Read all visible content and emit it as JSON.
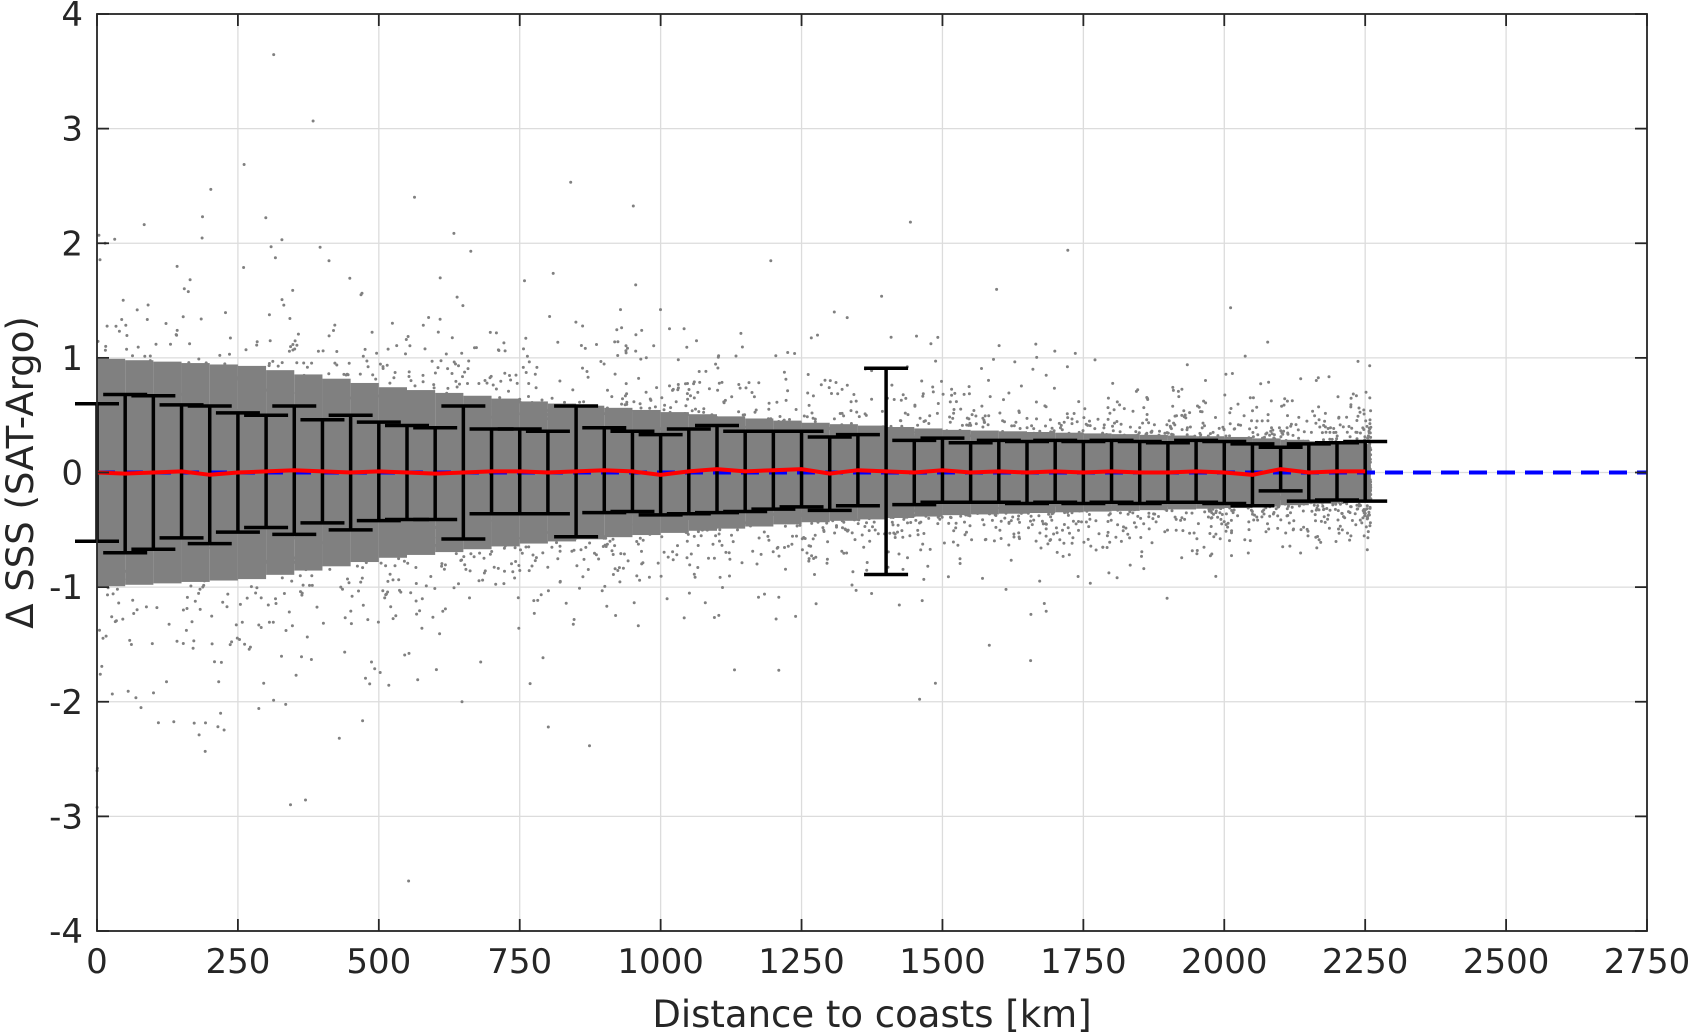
{
  "chart_data": {
    "type": "scatter",
    "title": "",
    "xlabel": "Distance to coasts [km]",
    "ylabel": "Δ SSS (SAT-Argo)",
    "xlim": [
      0,
      2750
    ],
    "ylim": [
      -4,
      4
    ],
    "xticks": [
      0,
      250,
      500,
      750,
      1000,
      1250,
      1500,
      1750,
      2000,
      2250,
      2500,
      2750
    ],
    "yticks": [
      4,
      3,
      2,
      1,
      0,
      -1,
      -2,
      -3,
      -4
    ],
    "grid": true,
    "legend": "none",
    "colors": {
      "scatter": "#808080",
      "errorbar": "#000000",
      "mean_line": "#ff0000",
      "zero_line": "#0000ff",
      "grid": "#dcdcdc",
      "axes": "#262626"
    },
    "scatter_note": "dense cloud of individual matchups; spread decreases with distance",
    "scatter_extent": {
      "x_max": 2260,
      "envelope": [
        {
          "x": 0,
          "half_width": 1.6
        },
        {
          "x": 250,
          "half_width": 1.5
        },
        {
          "x": 500,
          "half_width": 1.2
        },
        {
          "x": 750,
          "half_width": 1.0
        },
        {
          "x": 1000,
          "half_width": 0.85
        },
        {
          "x": 1250,
          "half_width": 0.7
        },
        {
          "x": 1500,
          "half_width": 0.6
        },
        {
          "x": 1750,
          "half_width": 0.55
        },
        {
          "x": 2000,
          "half_width": 0.5
        },
        {
          "x": 2250,
          "half_width": 0.4
        }
      ]
    },
    "errorbars": {
      "x": [
        0,
        50,
        100,
        150,
        200,
        250,
        300,
        350,
        400,
        450,
        500,
        550,
        600,
        650,
        700,
        750,
        800,
        850,
        900,
        950,
        1000,
        1050,
        1100,
        1150,
        1200,
        1250,
        1300,
        1350,
        1400,
        1450,
        1500,
        1550,
        1600,
        1650,
        1700,
        1750,
        1800,
        1850,
        1900,
        1950,
        2000,
        2050,
        2100,
        2150,
        2200,
        2250
      ],
      "mean": [
        0.0,
        -0.01,
        0.0,
        0.01,
        -0.02,
        0.0,
        0.01,
        0.02,
        0.01,
        0.0,
        0.01,
        0.0,
        -0.01,
        0.0,
        0.01,
        0.01,
        0.0,
        0.01,
        0.02,
        0.01,
        -0.02,
        0.01,
        0.03,
        0.01,
        0.02,
        0.03,
        -0.01,
        0.02,
        0.01,
        0.0,
        0.02,
        0.0,
        0.01,
        0.0,
        0.01,
        0.0,
        0.01,
        0.0,
        0.0,
        0.01,
        0.0,
        -0.02,
        0.03,
        0.0,
        0.01,
        0.01
      ],
      "std": [
        0.6,
        0.69,
        0.67,
        0.58,
        0.6,
        0.52,
        0.49,
        0.56,
        0.45,
        0.5,
        0.43,
        0.41,
        0.4,
        0.58,
        0.37,
        0.37,
        0.36,
        0.57,
        0.37,
        0.35,
        0.35,
        0.37,
        0.38,
        0.35,
        0.34,
        0.33,
        0.32,
        0.31,
        0.9,
        0.28,
        0.28,
        0.26,
        0.27,
        0.27,
        0.27,
        0.27,
        0.27,
        0.27,
        0.26,
        0.27,
        0.27,
        0.27,
        0.19,
        0.25,
        0.25,
        0.26
      ]
    },
    "mean_series": {
      "x": [
        0,
        50,
        100,
        150,
        200,
        250,
        300,
        350,
        400,
        450,
        500,
        550,
        600,
        650,
        700,
        750,
        800,
        850,
        900,
        950,
        1000,
        1050,
        1100,
        1150,
        1200,
        1250,
        1300,
        1350,
        1400,
        1450,
        1500,
        1550,
        1600,
        1650,
        1700,
        1750,
        1800,
        1850,
        1900,
        1950,
        2000,
        2050,
        2100,
        2150,
        2200,
        2250
      ],
      "y": [
        0.0,
        -0.01,
        0.0,
        0.01,
        -0.02,
        0.0,
        0.01,
        0.02,
        0.01,
        0.0,
        0.01,
        0.0,
        -0.01,
        0.0,
        0.01,
        0.01,
        0.0,
        0.01,
        0.02,
        0.01,
        -0.02,
        0.01,
        0.03,
        0.01,
        0.02,
        0.03,
        -0.01,
        0.02,
        0.01,
        0.0,
        0.02,
        0.0,
        0.01,
        0.0,
        0.01,
        0.0,
        0.01,
        0.0,
        0.0,
        0.01,
        0.0,
        -0.02,
        0.03,
        0.0,
        0.01,
        0.01
      ]
    },
    "zero_line": {
      "y": 0,
      "style": "dashed"
    }
  }
}
